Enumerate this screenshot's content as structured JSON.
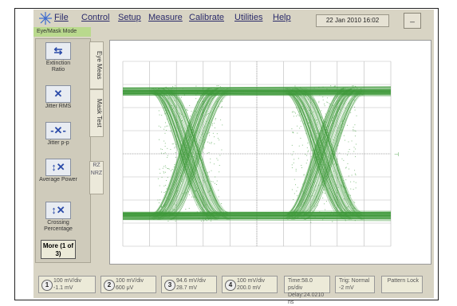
{
  "menu": {
    "items": [
      "File",
      "Control",
      "Setup",
      "Measure",
      "Calibrate",
      "Utilities",
      "Help"
    ],
    "datetime": "22 Jan 2010 16:02",
    "minimize": "_"
  },
  "mode_tab": "Eye/Mask Mode",
  "left_panel": {
    "buttons": [
      {
        "label": "Extinction Ratio",
        "icon": "extinction-ratio-icon"
      },
      {
        "label": "Jitter RMS",
        "icon": "jitter-rms-icon"
      },
      {
        "label": "Jitter p-p",
        "icon": "jitter-pp-icon"
      },
      {
        "label": "Average Power",
        "icon": "average-power-icon"
      },
      {
        "label": "Crossing Percentage",
        "icon": "crossing-percentage-icon"
      }
    ],
    "more": "More (1 of 3)",
    "tabs": [
      "Eye Meas",
      "Mask Test"
    ],
    "format": "RZ NRZ"
  },
  "bottom": {
    "channels": [
      {
        "num": "1",
        "scale": "100 mV/div",
        "offset": "-1.1 mV"
      },
      {
        "num": "2",
        "scale": "100 mV/div",
        "offset": "600 μV"
      },
      {
        "num": "3",
        "scale": "94.6 mV/div",
        "offset": "28.7 mV"
      },
      {
        "num": "4",
        "scale": "100 mV/div",
        "offset": "200.0 mV"
      }
    ],
    "time": {
      "line1": "Time:58.0 ps/div",
      "line2": "Delay:24.0210 ns"
    },
    "trig": {
      "line1": "Trig: Normal",
      "line2": "-2 mV"
    },
    "pattern": "Pattern Lock"
  },
  "colors": {
    "trace": "#3d9a3a",
    "accent": "#b9d98d"
  }
}
